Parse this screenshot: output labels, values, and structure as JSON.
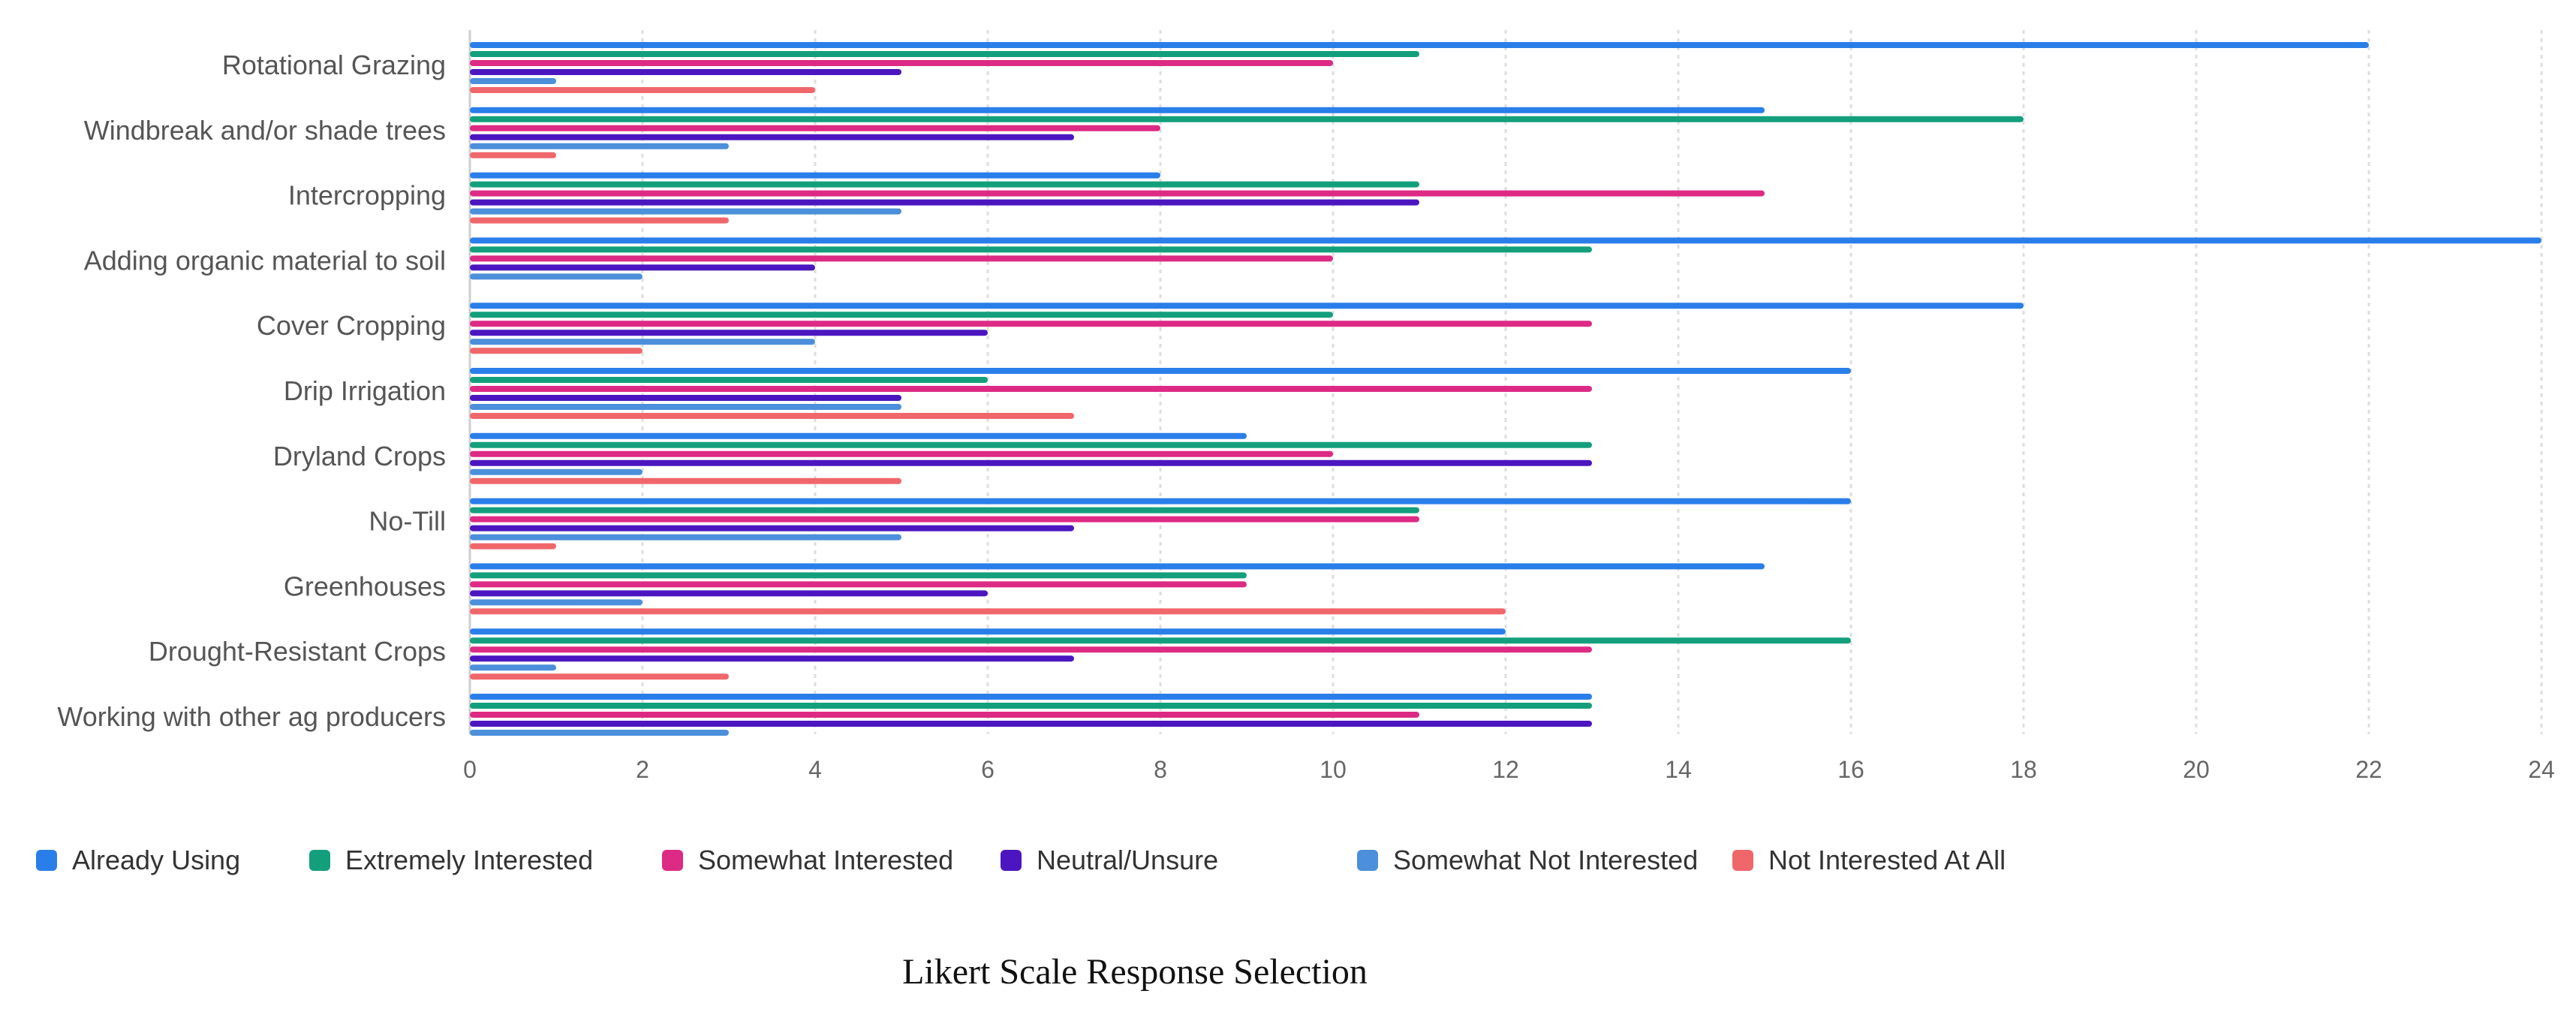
{
  "chart_data": {
    "type": "bar",
    "orientation": "horizontal",
    "categories": [
      "Rotational Grazing",
      "Windbreak and/or shade trees",
      "Intercropping",
      "Adding organic material to soil",
      "Cover Cropping",
      "Drip Irrigation",
      "Dryland Crops",
      "No-Till",
      "Greenhouses",
      "Drought-Resistant Crops",
      "Working with other ag producers"
    ],
    "series": [
      {
        "name": "Already Using",
        "color": "#2a7ee9",
        "values": [
          22,
          15,
          8,
          24,
          18,
          16,
          9,
          16,
          15,
          12,
          13
        ]
      },
      {
        "name": "Extremely Interested",
        "color": "#139f7c",
        "values": [
          11,
          18,
          11,
          13,
          10,
          6,
          13,
          11,
          9,
          16,
          13
        ]
      },
      {
        "name": "Somewhat Interested",
        "color": "#dd2a84",
        "values": [
          10,
          8,
          15,
          10,
          13,
          13,
          10,
          11,
          9,
          13,
          11
        ]
      },
      {
        "name": "Neutral/Unsure",
        "color": "#4b16c0",
        "values": [
          5,
          7,
          11,
          4,
          6,
          5,
          13,
          7,
          6,
          7,
          13
        ]
      },
      {
        "name": "Somewhat Not Interested",
        "color": "#4c8fdb",
        "values": [
          1,
          3,
          5,
          2,
          4,
          5,
          2,
          5,
          2,
          1,
          3
        ]
      },
      {
        "name": "Not Interested At All",
        "color": "#f0676b",
        "values": [
          4,
          1,
          3,
          0,
          2,
          7,
          5,
          1,
          12,
          3,
          0
        ]
      }
    ],
    "xlim": [
      0,
      24
    ],
    "xticks": [
      0,
      2,
      4,
      6,
      8,
      10,
      12,
      14,
      16,
      18,
      20,
      22,
      24
    ],
    "grid": true,
    "legend_position": "bottom",
    "caption": "Likert Scale Response Selection"
  }
}
